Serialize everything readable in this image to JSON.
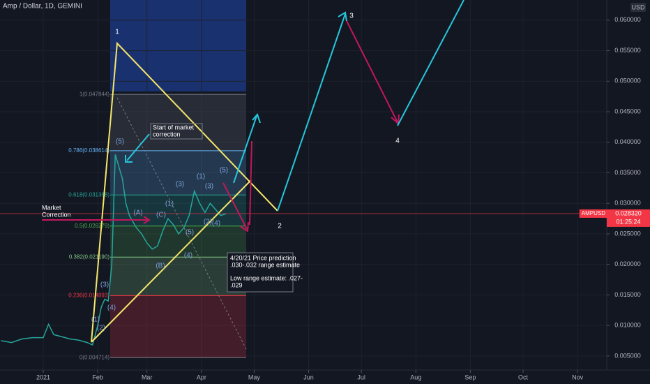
{
  "chart_data": {
    "type": "line",
    "title": "Amp / Dollar, 1D, GEMINI",
    "currency": "USD",
    "x": [
      -24,
      -18,
      -12,
      -6,
      0,
      3,
      6,
      10,
      15,
      20,
      25,
      28,
      31,
      33,
      35,
      37,
      39,
      41,
      43,
      45,
      47,
      49,
      51,
      53,
      56,
      59,
      62,
      65,
      68,
      71,
      74,
      77,
      80,
      83,
      86,
      89,
      92,
      95,
      98,
      101,
      104
    ],
    "series": [
      {
        "name": "AMPUSD",
        "color": "#26a69a",
        "values": [
          0.0075,
          0.0072,
          0.0078,
          0.008,
          0.008,
          0.0102,
          0.0085,
          0.0082,
          0.0078,
          0.0076,
          0.0072,
          0.0068,
          0.01,
          0.013,
          0.0143,
          0.014,
          0.02,
          0.038,
          0.036,
          0.0341,
          0.03,
          0.028,
          0.027,
          0.026,
          0.025,
          0.0235,
          0.0225,
          0.023,
          0.0255,
          0.0275,
          0.0265,
          0.025,
          0.026,
          0.028,
          0.032,
          0.03,
          0.0285,
          0.03,
          0.029,
          0.028,
          0.0283
        ]
      }
    ],
    "xlim": [
      -24.6,
      320.6
    ],
    "xticks": [
      {
        "value": 0,
        "label": "2021"
      },
      {
        "value": 31,
        "label": "Feb"
      },
      {
        "value": 59,
        "label": "Mar"
      },
      {
        "value": 90,
        "label": "Apr"
      },
      {
        "value": 120,
        "label": "May"
      },
      {
        "value": 151,
        "label": "Jun"
      },
      {
        "value": 181,
        "label": "Jul"
      },
      {
        "value": 212,
        "label": "Aug"
      },
      {
        "value": 243,
        "label": "Sep"
      },
      {
        "value": 273,
        "label": "Oct"
      },
      {
        "value": 304,
        "label": "Nov"
      }
    ],
    "ylim": [
      0.0027,
      0.0633
    ],
    "yticks": [
      {
        "value": 0.005,
        "label": "0.005000"
      },
      {
        "value": 0.01,
        "label": "0.010000"
      },
      {
        "value": 0.015,
        "label": "0.015000"
      },
      {
        "value": 0.02,
        "label": "0.020000"
      },
      {
        "value": 0.025,
        "label": "0.025000"
      },
      {
        "value": 0.03,
        "label": "0.030000"
      },
      {
        "value": 0.035,
        "label": "0.035000"
      },
      {
        "value": 0.04,
        "label": "0.040000"
      },
      {
        "value": 0.045,
        "label": "0.045000"
      },
      {
        "value": 0.05,
        "label": "0.050000"
      },
      {
        "value": 0.055,
        "label": "0.055000"
      },
      {
        "value": 0.06,
        "label": "0.060000"
      }
    ],
    "grid": true,
    "last_price": {
      "value": 0.02832,
      "label": "0.028320"
    },
    "countdown": "01:25:24",
    "fib_levels": [
      {
        "value": 0.047844,
        "label": "1(0.047844)",
        "color": "#787b86"
      },
      {
        "value": 0.038614,
        "label": "0.786(0.038614)",
        "color": "#64b5f6"
      },
      {
        "value": 0.031368,
        "label": "0.618(0.031368)",
        "color": "#26a69a"
      },
      {
        "value": 0.026279,
        "label": "0.5(0.026279)",
        "color": "#4caf50"
      },
      {
        "value": 0.02119,
        "label": "0.382(0.021190)",
        "color": "#81c784"
      },
      {
        "value": 0.014893,
        "label": "0.236(0.014893)",
        "color": "#f23645"
      },
      {
        "value": 0.004714,
        "label": "0(0.004714)",
        "color": "#787b86"
      }
    ],
    "wave_points": [
      "1",
      "2",
      "3",
      "4"
    ],
    "wave_labels": [
      "(5)",
      "(3)",
      "(1)",
      "(3)",
      "(5)",
      "(1)",
      "(C)",
      "(A)",
      "(B)",
      "(4)",
      "(5)",
      "(4)",
      "(2)",
      "(3)",
      "(1)",
      "(2)",
      "(4)"
    ],
    "callouts": [
      "Market",
      "Correction",
      "Start of market",
      "correction"
    ],
    "note": [
      "4/20/21 Price prediction",
      ".030-.032 range estimate",
      "Low range estimate: .027-",
      ".029"
    ]
  }
}
